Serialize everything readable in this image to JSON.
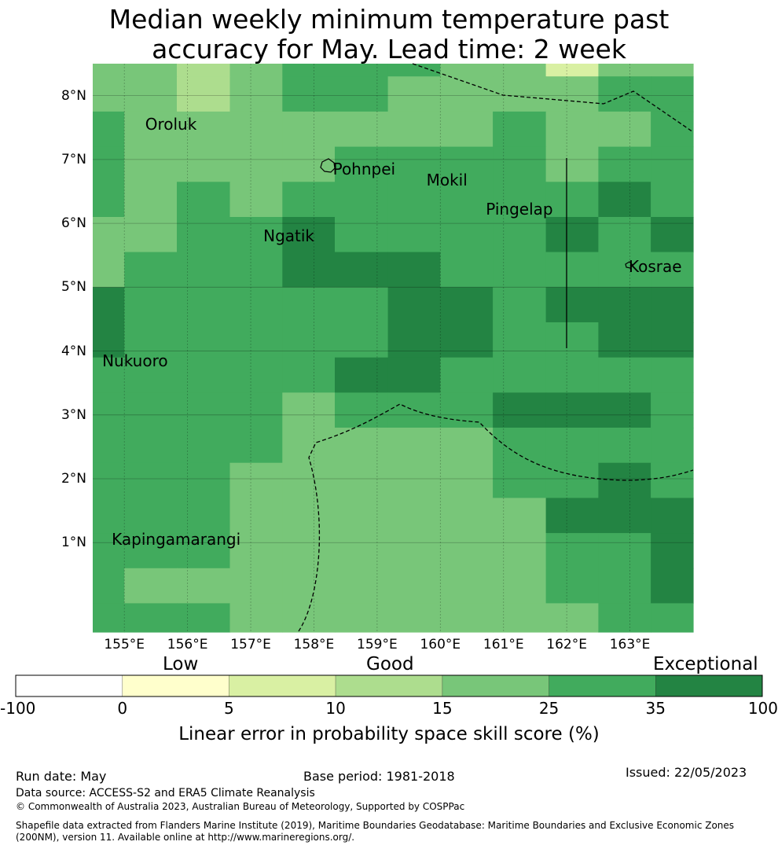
{
  "title": {
    "line1": "Median weekly minimum temperature past",
    "line2": "accuracy for May. Lead time: 2 week"
  },
  "map": {
    "lon_range": [
      154.5,
      164.0
    ],
    "lat_range": [
      -0.4,
      8.5
    ],
    "lon_ticks": [
      "155°E",
      "156°E",
      "157°E",
      "158°E",
      "159°E",
      "160°E",
      "161°E",
      "162°E",
      "163°E"
    ],
    "lat_ticks": [
      "1°N",
      "2°N",
      "3°N",
      "4°N",
      "5°N",
      "6°N",
      "7°N",
      "8°N"
    ],
    "grid_lines": true,
    "places": [
      {
        "name": "Oroluk",
        "lon": 155.33,
        "lat": 7.55
      },
      {
        "name": "Pohnpei",
        "lon": 158.3,
        "lat": 6.85
      },
      {
        "name": "Mokil",
        "lon": 159.78,
        "lat": 6.68
      },
      {
        "name": "Pingelap",
        "lon": 160.72,
        "lat": 6.22
      },
      {
        "name": "Ngatik",
        "lon": 157.2,
        "lat": 5.8
      },
      {
        "name": "Kosrae",
        "lon": 162.98,
        "lat": 5.33
      },
      {
        "name": "Nukuoro",
        "lon": 154.65,
        "lat": 3.85
      },
      {
        "name": "Kapingamarangi",
        "lon": 154.8,
        "lat": 1.05
      }
    ]
  },
  "grid_cells": {
    "lon_edges": [
      154.5,
      155.0,
      155.83,
      156.67,
      157.5,
      158.33,
      159.17,
      160.0,
      160.83,
      161.67,
      162.5,
      163.33,
      164.0
    ],
    "lat_edges": [
      8.5,
      8.3,
      7.75,
      7.2,
      6.65,
      6.1,
      5.55,
      5.0,
      4.45,
      3.9,
      3.35,
      2.8,
      2.25,
      1.7,
      1.15,
      0.6,
      0.05,
      -0.4
    ],
    "rows": [
      [
        4,
        4,
        3,
        4,
        5,
        5,
        5,
        4,
        4,
        2,
        4,
        4
      ],
      [
        4,
        4,
        3,
        4,
        5,
        5,
        4,
        4,
        4,
        4,
        5,
        5
      ],
      [
        5,
        4,
        4,
        4,
        4,
        4,
        4,
        4,
        5,
        4,
        4,
        5
      ],
      [
        5,
        4,
        4,
        4,
        4,
        5,
        5,
        5,
        5,
        4,
        5,
        5
      ],
      [
        5,
        4,
        5,
        4,
        5,
        5,
        5,
        5,
        5,
        5,
        6,
        5
      ],
      [
        4,
        4,
        5,
        5,
        6,
        5,
        5,
        5,
        5,
        6,
        5,
        6
      ],
      [
        4,
        5,
        5,
        5,
        6,
        6,
        6,
        5,
        5,
        5,
        5,
        5
      ],
      [
        6,
        5,
        5,
        5,
        5,
        5,
        6,
        6,
        5,
        6,
        6,
        6
      ],
      [
        6,
        5,
        5,
        5,
        5,
        5,
        6,
        6,
        5,
        5,
        6,
        6
      ],
      [
        5,
        5,
        5,
        5,
        5,
        6,
        6,
        5,
        5,
        5,
        5,
        5
      ],
      [
        5,
        5,
        5,
        5,
        4,
        5,
        5,
        5,
        6,
        6,
        6,
        5
      ],
      [
        5,
        5,
        5,
        5,
        4,
        4,
        4,
        4,
        5,
        5,
        5,
        5
      ],
      [
        5,
        5,
        5,
        4,
        4,
        4,
        4,
        4,
        5,
        5,
        6,
        5
      ],
      [
        5,
        5,
        5,
        4,
        4,
        4,
        4,
        4,
        4,
        6,
        6,
        6
      ],
      [
        5,
        5,
        5,
        4,
        4,
        4,
        4,
        4,
        4,
        5,
        5,
        6
      ],
      [
        5,
        4,
        4,
        4,
        4,
        4,
        4,
        4,
        4,
        5,
        5,
        6
      ],
      [
        5,
        5,
        5,
        4,
        4,
        4,
        4,
        4,
        4,
        4,
        5,
        5
      ]
    ]
  },
  "legend": {
    "categories": [
      {
        "label": "Low"
      },
      {
        "label": "Good"
      },
      {
        "label": "Exceptional"
      }
    ],
    "ticks": [
      "-100",
      "0",
      "5",
      "10",
      "15",
      "25",
      "35",
      "100"
    ],
    "colors": [
      "#ffffff",
      "#ffffcc",
      "#d9f0a3",
      "#addd8e",
      "#78c679",
      "#41ab5d",
      "#238443"
    ],
    "title": "Linear error in probability space skill score (%)"
  },
  "footer": {
    "run_date": "Run date: May",
    "base_period": "Base period: 1981-2018",
    "issued": "Issued: 22/05/2023",
    "data_source": "Data source: ACCESS-S2 and ERA5 Climate Reanalysis",
    "copyright": "© Commonwealth of Australia 2023, Australian Bureau of Meteorology, Supported by COSPPac",
    "shapefile_line1": "Shapefile data extracted from Flanders Marine Institute (2019), Maritime Boundaries Geodatabase: Maritime Boundaries and Exclusive Economic Zones",
    "shapefile_line2": "(200NM), version 11. Available online at http://www.marineregions.org/."
  }
}
